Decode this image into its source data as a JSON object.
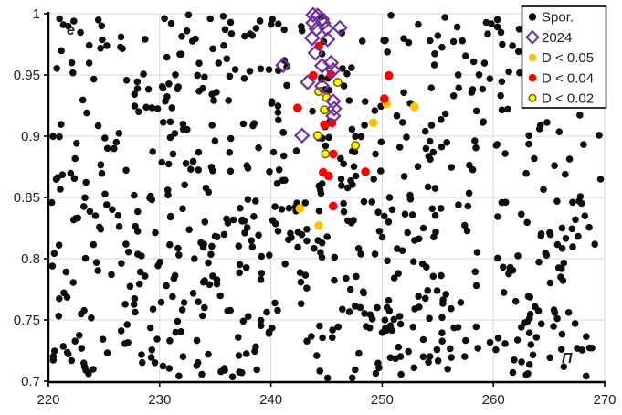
{
  "chart_data": {
    "type": "scatter",
    "title": "",
    "xlabel": "Π",
    "ylabel": "e",
    "xlim": [
      220,
      270
    ],
    "ylim": [
      0.7,
      1
    ],
    "x_ticks": [
      "220",
      "230",
      "240",
      "250",
      "260",
      "270"
    ],
    "x_tick_values": [
      220,
      230,
      240,
      250,
      260,
      270
    ],
    "y_ticks": [
      "1",
      "0.95",
      "0.9",
      "0.85",
      "0.8",
      "0.75",
      "0.7"
    ],
    "y_tick_values": [
      1,
      0.95,
      0.9,
      0.85,
      0.8,
      0.75,
      0.7
    ],
    "grid": true,
    "grid_color": "#d9d9d9",
    "axis_color": "#000000",
    "legend_position": "top-right",
    "series": [
      {
        "name": "Spor.",
        "marker": "circle-filled",
        "color": "#0d0d0d",
        "points_approximation": {
          "note": "dense uniform scatter of unlabeled sporadic points, individually unreadable; reproduced with seeded uniform distribution",
          "distribution": "uniform_random",
          "count": 760,
          "seed": 1337,
          "x_range": [
            220.3,
            269.7
          ],
          "y_range": [
            0.7025,
            0.999
          ]
        }
      },
      {
        "name": "2024",
        "marker": "diamond-open",
        "color": "#7030a0",
        "points": [
          [
            243.8,
            0.999
          ],
          [
            244.2,
            0.9985
          ],
          [
            244.6,
            0.9955
          ],
          [
            243.8,
            0.9925
          ],
          [
            244.7,
            0.9925
          ],
          [
            244.1,
            0.9875
          ],
          [
            245.0,
            0.988
          ],
          [
            246.2,
            0.9885
          ],
          [
            243.7,
            0.98
          ],
          [
            245.1,
            0.979
          ],
          [
            244.0,
            0.968
          ],
          [
            241.1,
            0.958
          ],
          [
            244.6,
            0.9575
          ],
          [
            245.4,
            0.96
          ],
          [
            245.6,
            0.954
          ],
          [
            243.3,
            0.944
          ],
          [
            244.6,
            0.941
          ],
          [
            245.6,
            0.9285
          ],
          [
            245.7,
            0.9225
          ],
          [
            245.6,
            0.9165
          ],
          [
            242.8,
            0.9005
          ]
        ]
      },
      {
        "name": "D < 0.05",
        "marker": "circle-filled",
        "color": "#ffc000",
        "points": [
          [
            249.2,
            0.911
          ],
          [
            250.4,
            0.9265
          ],
          [
            252.9,
            0.924
          ],
          [
            242.6,
            0.841
          ],
          [
            244.3,
            0.827
          ]
        ]
      },
      {
        "name": "D < 0.04",
        "marker": "circle-filled",
        "color": "#ff0000",
        "points": [
          [
            244.3,
            0.9735
          ],
          [
            243.8,
            0.9495
          ],
          [
            245.4,
            0.9505
          ],
          [
            250.6,
            0.9495
          ],
          [
            242.4,
            0.923
          ],
          [
            250.2,
            0.9305
          ],
          [
            244.8,
            0.9095
          ],
          [
            245.5,
            0.911
          ],
          [
            245.6,
            0.8855
          ],
          [
            244.7,
            0.8705
          ],
          [
            245.2,
            0.8675
          ],
          [
            248.5,
            0.871
          ],
          [
            245.6,
            0.843
          ]
        ]
      },
      {
        "name": "D < 0.02",
        "marker": "circle-outlined",
        "color": "#ffff00",
        "outline_color": "#7f6000",
        "points": [
          [
            244.3,
            0.9365
          ],
          [
            246.0,
            0.944
          ],
          [
            245.0,
            0.9315
          ],
          [
            244.8,
            0.9215
          ],
          [
            244.2,
            0.9005
          ],
          [
            247.6,
            0.8925
          ],
          [
            244.9,
            0.8855
          ]
        ]
      }
    ],
    "legend_labels": [
      "Spor.",
      "2024",
      "D < 0.05",
      "D < 0.04",
      "D < 0.02"
    ]
  }
}
